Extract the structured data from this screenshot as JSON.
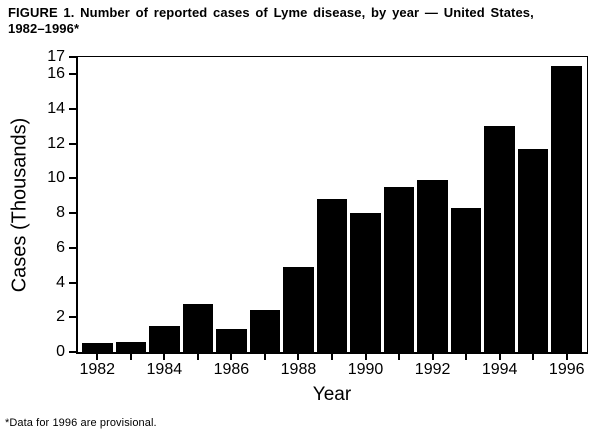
{
  "figure": {
    "title_line1": "FIGURE 1. Number of reported cases of Lyme disease, by year — United States,",
    "title_line2": "1982–1996*",
    "footnote": "*Data for 1996 are provisional.",
    "background_color": "#ffffff",
    "bar_color": "#000000",
    "axis_color": "#000000"
  },
  "chart_data": {
    "type": "bar",
    "title": "FIGURE 1. Number of reported cases of Lyme disease, by year — United States, 1982–1996*",
    "xlabel": "Year",
    "ylabel": "Cases (Thousands)",
    "categories": [
      "1982",
      "1983",
      "1984",
      "1985",
      "1986",
      "1987",
      "1988",
      "1989",
      "1990",
      "1991",
      "1992",
      "1993",
      "1994",
      "1995",
      "1996"
    ],
    "values": [
      0.5,
      0.6,
      1.5,
      2.75,
      1.35,
      2.4,
      4.9,
      8.8,
      8.0,
      9.5,
      9.9,
      8.3,
      13.0,
      11.7,
      16.5
    ],
    "ylim": [
      0,
      17
    ],
    "yticks": [
      0,
      2,
      4,
      6,
      8,
      10,
      12,
      14,
      16,
      17
    ],
    "xtick_labeled_categories": [
      "1982",
      "1984",
      "1986",
      "1988",
      "1990",
      "1992",
      "1994",
      "1996"
    ],
    "grid": false,
    "legend_position": "none",
    "bar_color": "#000000",
    "footnote": "*Data for 1996 are provisional."
  }
}
